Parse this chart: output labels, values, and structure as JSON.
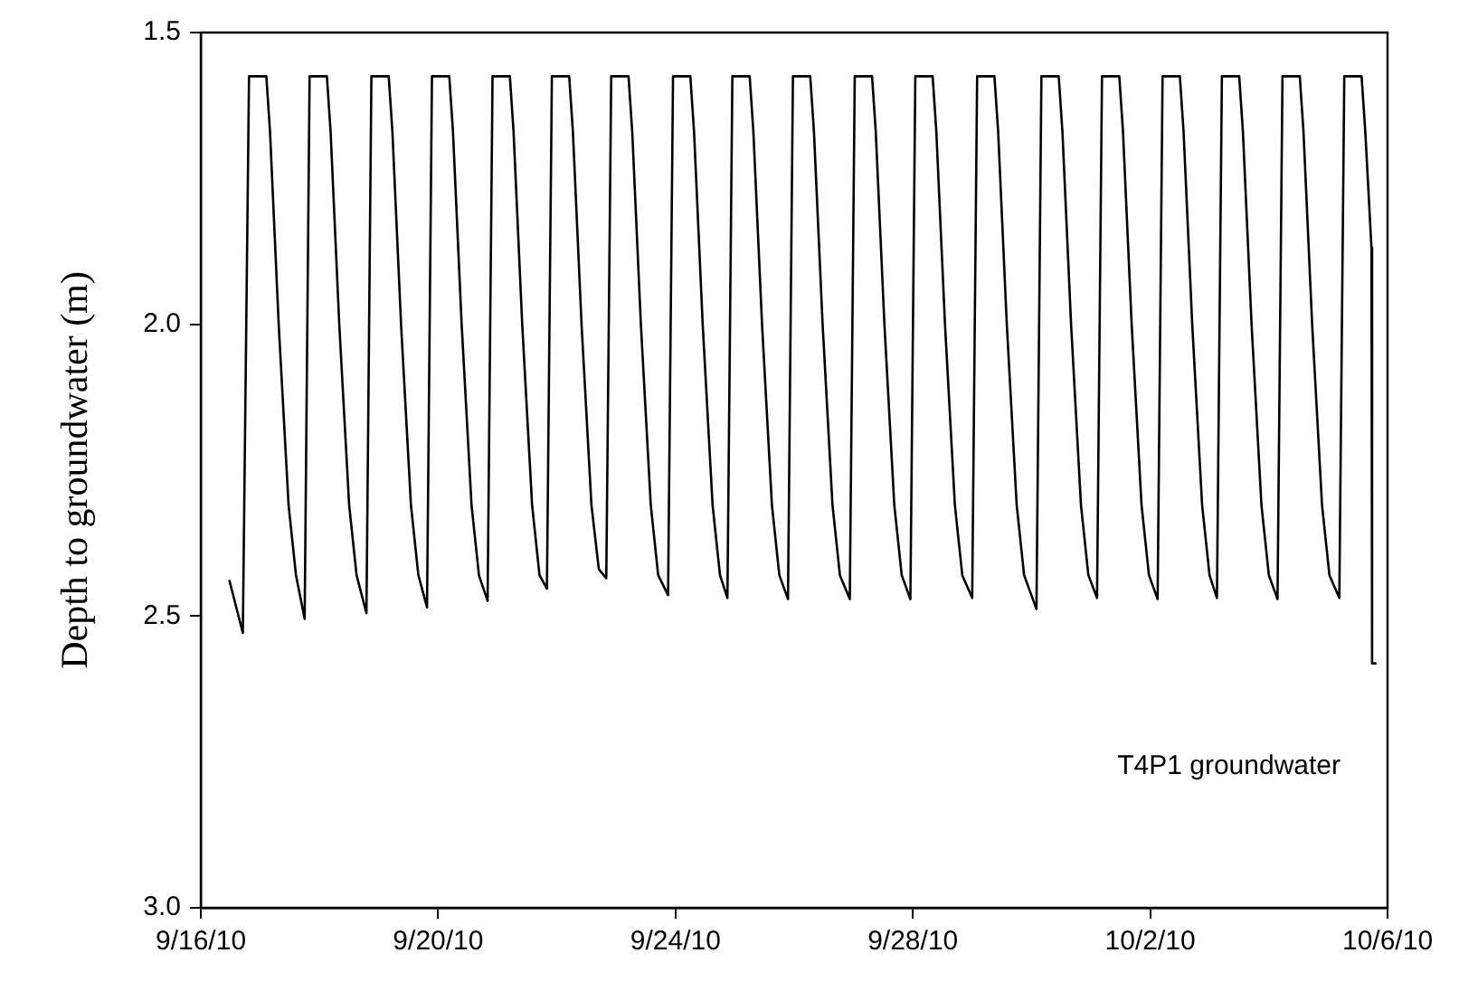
{
  "chart_data": {
    "type": "line",
    "ylabel": "Depth to groundwater (m)",
    "annotations": [
      "T4P1 groundwater"
    ],
    "x": [
      "--09-16T11:30",
      "--09-16T17:00",
      "--09-16T19:30",
      "--09-17T02:30",
      "--09-17T04:00",
      "--09-17T07:30",
      "--09-17T11:30",
      "--09-17T14:30",
      "--09-17T18:00",
      "--09-17T20:00",
      "--09-18T03:00",
      "--09-18T04:30",
      "--09-18T08:00",
      "--09-18T12:00",
      "--09-18T15:00",
      "--09-18T19:00",
      "--09-18T21:00",
      "--09-19T04:00",
      "--09-19T05:30",
      "--09-19T09:00",
      "--09-19T13:00",
      "--09-19T16:00",
      "--09-19T19:30",
      "--09-19T21:30",
      "--09-20T04:30",
      "--09-20T06:00",
      "--09-20T09:30",
      "--09-20T13:30",
      "--09-20T16:30",
      "--09-20T20:00",
      "--09-20T22:00",
      "--09-21T05:00",
      "--09-21T06:30",
      "--09-21T10:00",
      "--09-21T14:00",
      "--09-21T17:00",
      "--09-21T20:00",
      "--09-21T22:00",
      "--09-22T05:00",
      "--09-22T06:30",
      "--09-22T10:00",
      "--09-22T14:00",
      "--09-22T17:00",
      "--09-22T20:00",
      "--09-22T22:00",
      "--09-23T05:00",
      "--09-23T06:30",
      "--09-23T10:00",
      "--09-23T14:00",
      "--09-23T17:00",
      "--09-23T21:00",
      "--09-23T23:00",
      "--09-24T06:00",
      "--09-24T07:30",
      "--09-24T11:00",
      "--09-24T15:00",
      "--09-24T18:00",
      "--09-24T21:00",
      "--09-24T23:00",
      "--09-25T06:00",
      "--09-25T07:30",
      "--09-25T11:00",
      "--09-25T15:00",
      "--09-25T18:00",
      "--09-25T21:30",
      "--09-25T23:30",
      "--09-26T06:30",
      "--09-26T08:00",
      "--09-26T11:30",
      "--09-26T15:30",
      "--09-26T18:30",
      "--09-26T22:30",
      "--09-27T00:30",
      "--09-27T07:30",
      "--09-27T09:00",
      "--09-27T12:30",
      "--09-27T16:30",
      "--09-27T19:30",
      "--09-27T23:00",
      "--09-28T01:00",
      "--09-28T08:00",
      "--09-28T09:30",
      "--09-28T13:00",
      "--09-28T17:00",
      "--09-28T20:00",
      "--09-29T00:00",
      "--09-29T02:00",
      "--09-29T09:00",
      "--09-29T10:30",
      "--09-29T14:00",
      "--09-29T18:00",
      "--09-29T21:00",
      "--09-30T02:00",
      "--09-30T04:00",
      "--09-30T11:00",
      "--09-30T12:30",
      "--09-30T16:00",
      "--09-30T20:00",
      "--09-30T23:00",
      "--10-01T02:30",
      "--10-01T04:30",
      "--10-01T11:30",
      "--10-01T13:00",
      "--10-01T16:30",
      "--10-01T20:30",
      "--10-01T23:30",
      "--10-02T03:00",
      "--10-02T05:00",
      "--10-02T12:00",
      "--10-02T13:30",
      "--10-02T17:00",
      "--10-02T21:00",
      "--10-03T00:00",
      "--10-03T03:00",
      "--10-03T05:00",
      "--10-03T12:00",
      "--10-03T13:30",
      "--10-03T17:00",
      "--10-03T21:00",
      "--10-04T00:00",
      "--10-04T03:30",
      "--10-04T05:30",
      "--10-04T12:30",
      "--10-04T14:00",
      "--10-04T17:30",
      "--10-04T21:30",
      "--10-05T00:30",
      "--10-05T04:30",
      "--10-05T06:30",
      "--10-05T13:30",
      "--10-05T15:00",
      "--10-05T17:30",
      "--10-05T17:45",
      "--10-05T19:30"
    ],
    "series": [
      {
        "color": "#000000",
        "values": [
          2.438,
          2.529,
          1.575,
          1.575,
          1.67,
          2.0,
          2.31,
          2.43,
          2.505,
          1.575,
          1.575,
          1.67,
          2.0,
          2.31,
          2.43,
          2.495,
          1.575,
          1.575,
          1.67,
          2.0,
          2.31,
          2.43,
          2.485,
          1.575,
          1.575,
          1.67,
          2.0,
          2.31,
          2.43,
          2.474,
          1.575,
          1.575,
          1.67,
          2.0,
          2.31,
          2.43,
          2.453,
          1.575,
          1.575,
          1.67,
          2.0,
          2.31,
          2.42,
          2.435,
          1.575,
          1.575,
          1.67,
          2.0,
          2.31,
          2.43,
          2.464,
          1.575,
          1.575,
          1.67,
          2.0,
          2.31,
          2.43,
          2.469,
          1.575,
          1.575,
          1.67,
          2.0,
          2.31,
          2.43,
          2.471,
          1.575,
          1.575,
          1.67,
          2.0,
          2.31,
          2.43,
          2.471,
          1.575,
          1.575,
          1.67,
          2.0,
          2.31,
          2.43,
          2.471,
          1.575,
          1.575,
          1.67,
          2.0,
          2.31,
          2.43,
          2.469,
          1.575,
          1.575,
          1.67,
          2.0,
          2.31,
          2.43,
          2.488,
          1.575,
          1.575,
          1.67,
          2.0,
          2.31,
          2.43,
          2.469,
          1.575,
          1.575,
          1.67,
          2.0,
          2.31,
          2.43,
          2.471,
          1.575,
          1.575,
          1.67,
          2.0,
          2.31,
          2.43,
          2.469,
          1.575,
          1.575,
          1.67,
          2.0,
          2.31,
          2.43,
          2.471,
          1.575,
          1.575,
          1.67,
          2.0,
          2.31,
          2.43,
          2.469,
          1.575,
          1.575,
          1.67,
          1.869,
          2.581,
          2.581
        ]
      }
    ],
    "xlim": [
      "--09-16",
      "--10-06"
    ],
    "xticks": [
      {
        "value": "--09-16",
        "label": "9/16/10"
      },
      {
        "value": "--09-20",
        "label": "9/20/10"
      },
      {
        "value": "--09-24",
        "label": "9/24/10"
      },
      {
        "value": "--09-28",
        "label": "9/28/10"
      },
      {
        "value": "--10-02",
        "label": "10/2/10"
      },
      {
        "value": "--10-06",
        "label": "10/6/10"
      }
    ],
    "ylim": [
      3.0,
      1.5
    ],
    "yticks": [
      {
        "value": 1.5,
        "label": "1.5"
      },
      {
        "value": 2,
        "label": "2.0"
      },
      {
        "value": 2.5,
        "label": "2.5"
      },
      {
        "value": 3,
        "label": "3.0"
      }
    ],
    "legend": false,
    "marker": "none",
    "line_style": "solid"
  }
}
